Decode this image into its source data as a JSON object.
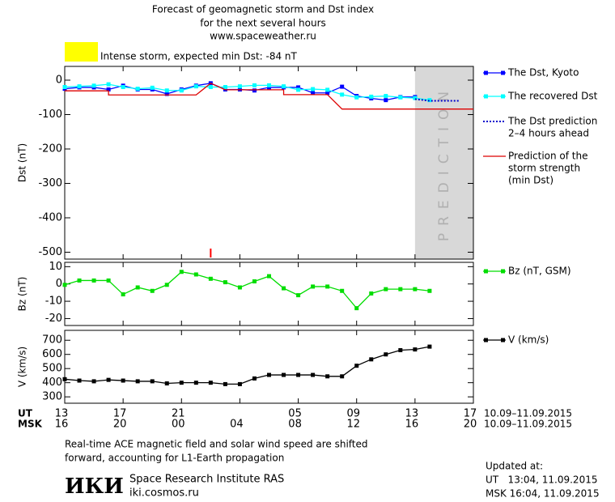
{
  "header": {
    "lines": [
      "Forecast of geomagnetic storm and Dst index",
      "for the next several hours",
      "www.spaceweather.ru"
    ],
    "status": "Intense storm, expected min Dst: -84 nT",
    "storm_color": "#ffff00"
  },
  "chart_data": [
    {
      "type": "line",
      "ylabel": "Dst (nT)",
      "xlim": [
        0,
        28
      ],
      "xticks": [
        0,
        4,
        8,
        12,
        16,
        20,
        24,
        28
      ],
      "ylim": [
        -520,
        40
      ],
      "yticks": [
        -500,
        -400,
        -300,
        -200,
        -100,
        0
      ],
      "prediction_from": 24,
      "prediction_label": "PREDICTION",
      "marker_x": 10,
      "marker_color": "#ff0000",
      "series": [
        {
          "name": [
            "The Dst, Kyoto"
          ],
          "color": "#0000ff",
          "marker": true,
          "style": "solid",
          "x": [
            0,
            1,
            2,
            3,
            4,
            5,
            6,
            7,
            8,
            9,
            10,
            11,
            12,
            13,
            14,
            15,
            16,
            17,
            18,
            19,
            20,
            21,
            22,
            23,
            24
          ],
          "values": [
            -25,
            -21,
            -21,
            -27,
            -16,
            -27,
            -27,
            -40,
            -27,
            -16,
            -9,
            -27,
            -27,
            -30,
            -21,
            -21,
            -21,
            -37,
            -37,
            -19,
            -46,
            -53,
            -58,
            -49,
            -49
          ]
        },
        {
          "name": [
            "The recovered Dst"
          ],
          "color": "#00ffff",
          "marker": true,
          "style": "solid",
          "x": [
            0,
            1,
            2,
            3,
            4,
            5,
            6,
            7,
            8,
            9,
            10,
            11,
            12,
            13,
            14,
            15,
            16,
            17,
            18,
            19,
            20,
            21,
            22,
            23,
            24,
            25
          ],
          "values": [
            -20,
            -18,
            -16,
            -12,
            -20,
            -25,
            -22,
            -30,
            -30,
            -18,
            -20,
            -20,
            -18,
            -15,
            -15,
            -18,
            -28,
            -26,
            -28,
            -42,
            -50,
            -48,
            -46,
            -50,
            -52,
            -58
          ]
        },
        {
          "name": [
            "The Dst prediction",
            "2–4 hours ahead"
          ],
          "color": "#0000cc",
          "marker": false,
          "style": "dotted",
          "x": [
            24,
            25,
            26,
            27
          ],
          "values": [
            -55,
            -60,
            -60,
            -60
          ]
        },
        {
          "name": [
            "Prediction of the",
            "storm strength",
            "(min Dst)"
          ],
          "color": "#dd0000",
          "marker": false,
          "style": "solid",
          "x": [
            0,
            3,
            3,
            9,
            10,
            11,
            15,
            15,
            18,
            19,
            28
          ],
          "values": [
            -31,
            -31,
            -43,
            -43,
            -9,
            -28,
            -28,
            -42,
            -42,
            -84,
            -84
          ]
        }
      ]
    },
    {
      "type": "line",
      "ylabel": "Bz (nT)",
      "xlim": [
        0,
        28
      ],
      "xticks": [
        0,
        4,
        8,
        12,
        16,
        20,
        24,
        28
      ],
      "ylim": [
        -24,
        12.5
      ],
      "yticks": [
        -20,
        -10,
        0,
        10
      ],
      "series": [
        {
          "name": [
            "Bz (nT, GSM)"
          ],
          "color": "#00dd00",
          "marker": true,
          "style": "solid",
          "x": [
            0,
            1,
            2,
            3,
            4,
            5,
            6,
            7,
            8,
            9,
            10,
            11,
            12,
            13,
            14,
            15,
            16,
            17,
            18,
            19,
            20,
            21,
            22,
            23,
            24,
            25
          ],
          "values": [
            -0.5,
            2,
            2,
            2,
            -6,
            -2,
            -4,
            -0.5,
            7,
            5.5,
            3,
            1,
            -2,
            1.5,
            4.5,
            -2.5,
            -6.5,
            -1.5,
            -1.5,
            -4,
            -14,
            -5.5,
            -3,
            -3,
            -3,
            -4
          ]
        }
      ]
    },
    {
      "type": "line",
      "ylabel": "V (km/s)",
      "xlim": [
        0,
        28
      ],
      "xticks": [
        0,
        4,
        8,
        12,
        16,
        20,
        24,
        28
      ],
      "ylim": [
        255,
        770
      ],
      "yticks": [
        300,
        400,
        500,
        600,
        700
      ],
      "series": [
        {
          "name": [
            "V (km/s)"
          ],
          "color": "#000000",
          "marker": true,
          "style": "solid",
          "x": [
            0,
            1,
            2,
            3,
            4,
            5,
            6,
            7,
            8,
            9,
            10,
            11,
            12,
            13,
            14,
            15,
            16,
            17,
            18,
            19,
            20,
            21,
            22,
            23,
            24,
            25
          ],
          "values": [
            425,
            415,
            410,
            420,
            415,
            410,
            410,
            395,
            400,
            400,
            400,
            390,
            390,
            430,
            455,
            455,
            455,
            455,
            445,
            445,
            520,
            565,
            600,
            630,
            635,
            655
          ]
        }
      ]
    }
  ],
  "time_axis": {
    "ut_label": "UT",
    "ut_ticks": [
      "13",
      "17",
      "21",
      null,
      "05",
      "09",
      "13",
      "17"
    ],
    "msk_label": "MSK",
    "msk_ticks": [
      "16",
      "20",
      "00",
      "04",
      "08",
      "12",
      "16",
      "20"
    ],
    "range": "10.09–11.09.2015"
  },
  "footer": {
    "note": [
      "Real-time ACE magnetic field and solar wind speed are shifted",
      "forward, accounting for L1-Earth propagation"
    ],
    "logo": "ИКИ",
    "institute": "Space Research Institute RAS",
    "site": "iki.cosmos.ru",
    "updated": "Updated at:",
    "ut_time": "UT   13:04, 11.09.2015",
    "msk_time": "MSK 16:04, 11.09.2015"
  }
}
